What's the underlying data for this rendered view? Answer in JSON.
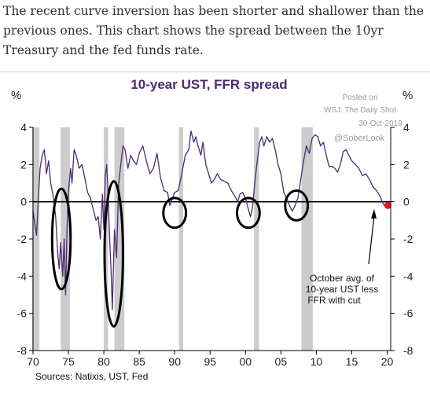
{
  "intro_text": "The recent curve inversion has been shorter and shallower than the previous ones. This chart shows the spread between the 10yr Treasury and the fed funds rate.",
  "colors": {
    "line": "#4b2a73",
    "recession": "#cccccc",
    "circle": "#000000",
    "dot": "#e8141c",
    "title": "#4b2a73"
  },
  "chart_data": {
    "type": "line",
    "title": "10-year UST, FFR spread",
    "ylabel_left": "%",
    "ylabel_right": "%",
    "ylim": [
      -8,
      4
    ],
    "yticks": [
      4,
      2,
      0,
      -2,
      -4,
      -6,
      -8
    ],
    "xlim": [
      1970,
      2020.5
    ],
    "xticks": [
      {
        "value": 1970,
        "label": "70"
      },
      {
        "value": 1975,
        "label": "75"
      },
      {
        "value": 1980,
        "label": "80"
      },
      {
        "value": 1985,
        "label": "85"
      },
      {
        "value": 1990,
        "label": "90"
      },
      {
        "value": 1995,
        "label": "95"
      },
      {
        "value": 2000,
        "label": "00"
      },
      {
        "value": 2005,
        "label": "05"
      },
      {
        "value": 2010,
        "label": "10"
      },
      {
        "value": 2015,
        "label": "15"
      },
      {
        "value": 2020,
        "label": "20"
      }
    ],
    "zero_line": true,
    "recession_bands": [
      [
        1969.9,
        1970.9
      ],
      [
        1973.9,
        1975.2
      ],
      [
        1980.0,
        1980.6
      ],
      [
        1981.5,
        1982.9
      ],
      [
        1990.6,
        1991.2
      ],
      [
        2001.2,
        2001.9
      ],
      [
        2007.9,
        2009.5
      ]
    ],
    "series": [
      {
        "x": [
          1970.0,
          1970.5,
          1970.8,
          1971.0,
          1971.3,
          1971.6,
          1971.9,
          1972.2,
          1972.5,
          1972.9,
          1973.2,
          1973.5,
          1973.7,
          1973.9,
          1974.2,
          1974.4,
          1974.6,
          1974.8,
          1975.0,
          1975.3,
          1975.5,
          1975.8,
          1976.1,
          1976.5,
          1976.9,
          1977.3,
          1977.7,
          1978.1,
          1978.5,
          1978.9,
          1979.2,
          1979.5,
          1979.8,
          1980.0,
          1980.2,
          1980.4,
          1980.6,
          1980.8,
          1981.0,
          1981.2,
          1981.5,
          1981.8,
          1982.1,
          1982.4,
          1982.7,
          1983.0,
          1983.4,
          1983.8,
          1984.2,
          1984.6,
          1985.0,
          1985.5,
          1986.0,
          1986.5,
          1987.0,
          1987.5,
          1988.0,
          1988.5,
          1989.0,
          1989.3,
          1989.7,
          1990.0,
          1990.5,
          1991.0,
          1991.5,
          1992.0,
          1992.3,
          1992.7,
          1993.0,
          1993.3,
          1993.7,
          1994.0,
          1994.4,
          1994.8,
          1995.2,
          1995.6,
          1996.0,
          1996.5,
          1997.0,
          1997.5,
          1998.0,
          1998.5,
          1998.9,
          1999.2,
          1999.6,
          2000.0,
          2000.4,
          2000.7,
          2001.0,
          2001.3,
          2001.6,
          2002.0,
          2002.3,
          2002.6,
          2003.0,
          2003.4,
          2003.8,
          2004.2,
          2004.6,
          2005.0,
          2005.4,
          2005.8,
          2006.2,
          2006.6,
          2007.0,
          2007.4,
          2007.8,
          2008.2,
          2008.6,
          2009.0,
          2009.4,
          2009.8,
          2010.2,
          2010.6,
          2011.0,
          2011.4,
          2011.8,
          2012.2,
          2012.6,
          2013.0,
          2013.4,
          2013.8,
          2014.2,
          2014.6,
          2015.0,
          2015.5,
          2016.0,
          2016.5,
          2017.0,
          2017.5,
          2018.0,
          2018.5,
          2019.0,
          2019.3,
          2019.6,
          2019.8
        ],
        "values": [
          -0.5,
          -1.8,
          0.5,
          1.8,
          2.5,
          2.8,
          1.5,
          2.2,
          1.0,
          0.2,
          -0.8,
          -2.8,
          -3.6,
          -2.2,
          -4.0,
          -2.0,
          -5.0,
          -1.5,
          0.5,
          1.8,
          1.0,
          2.8,
          2.5,
          1.8,
          2.0,
          1.3,
          0.5,
          0.2,
          -0.4,
          -1.0,
          -0.8,
          -2.0,
          0.4,
          -1.5,
          1.4,
          2.0,
          0.5,
          -1.8,
          -3.5,
          -5.8,
          -1.5,
          -3.0,
          1.0,
          2.0,
          3.0,
          2.8,
          1.8,
          2.5,
          2.2,
          2.0,
          2.6,
          3.0,
          2.2,
          1.5,
          1.8,
          2.6,
          1.3,
          0.6,
          0.5,
          -0.2,
          0.2,
          0.5,
          0.6,
          1.5,
          2.5,
          2.8,
          3.8,
          3.2,
          3.5,
          3.0,
          2.5,
          3.2,
          2.0,
          1.5,
          1.0,
          1.2,
          1.5,
          1.2,
          1.1,
          1.0,
          0.6,
          0.3,
          0.0,
          0.4,
          0.5,
          0.2,
          -0.4,
          -0.8,
          -0.3,
          1.0,
          2.0,
          3.2,
          3.5,
          3.0,
          3.5,
          3.2,
          3.4,
          2.8,
          2.0,
          1.5,
          0.5,
          0.2,
          -0.2,
          -0.5,
          -0.2,
          0.2,
          1.2,
          2.2,
          3.0,
          2.6,
          3.4,
          3.6,
          3.5,
          3.0,
          3.2,
          2.5,
          1.9,
          1.9,
          1.8,
          1.6,
          2.0,
          2.7,
          2.8,
          2.5,
          2.2,
          2.0,
          1.8,
          1.4,
          1.5,
          1.2,
          0.8,
          0.6,
          0.3,
          0.0,
          -0.2,
          -0.1
        ]
      }
    ],
    "highlight_point": {
      "x": 2020.1,
      "y": -0.2
    },
    "annotations": {
      "posted_lines": [
        "Posted on",
        "WSJ: The Daily Shot",
        "30-Oct-2019"
      ],
      "handle": "@SoberLook",
      "note_lines": [
        "October avg. of",
        "10-year UST less",
        "FFR with cut"
      ],
      "source": "Sources:  Natixis, UST, Fed"
    },
    "circled_periods": [
      {
        "x": 1974.0,
        "y": -2.0,
        "rx": 1.3,
        "ry": 2.7
      },
      {
        "x": 1981.4,
        "y": -2.8,
        "rx": 1.3,
        "ry": 3.9
      },
      {
        "x": 1990.0,
        "y": -0.6,
        "rx": 1.6,
        "ry": 0.8
      },
      {
        "x": 2000.4,
        "y": -0.6,
        "rx": 1.6,
        "ry": 0.8
      },
      {
        "x": 2007.2,
        "y": -0.2,
        "rx": 1.6,
        "ry": 0.8
      }
    ]
  }
}
